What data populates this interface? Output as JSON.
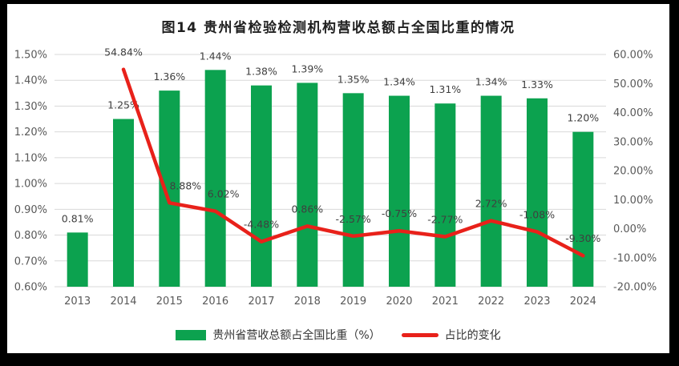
{
  "window": {
    "frame_background": "#000000",
    "panel_background": "#ffffff"
  },
  "title": "图14 贵州省检验检测机构营收总额占全国比重的情况",
  "legend": {
    "items": [
      {
        "label": "贵州省营收总额占全国比重（%）",
        "marker": "bar",
        "color": "#0CA24F"
      },
      {
        "label": "占比的变化",
        "marker": "line",
        "color": "#E8211A"
      }
    ]
  },
  "colors": {
    "bar_fill": "#0CA24F",
    "line_stroke": "#E8211A",
    "gridline": "#D9D9D9",
    "tick_text": "#595959",
    "data_label_text": "#3F3F3F"
  },
  "chart_data": {
    "type": "bar+line combo",
    "title": "图14 贵州省检验检测机构营收总额占全国比重的情况",
    "categories": [
      "2013",
      "2014",
      "2015",
      "2016",
      "2017",
      "2018",
      "2019",
      "2020",
      "2021",
      "2022",
      "2023",
      "2024"
    ],
    "series": [
      {
        "name": "贵州省营收总额占全国比重（%）",
        "type": "bar",
        "axis": "left",
        "color": "#0CA24F",
        "values": [
          0.81,
          1.25,
          1.36,
          1.44,
          1.38,
          1.39,
          1.35,
          1.34,
          1.31,
          1.34,
          1.33,
          1.2
        ],
        "data_labels": [
          "0.81%",
          "1.25%",
          "1.36%",
          "1.44%",
          "1.38%",
          "1.39%",
          "1.35%",
          "1.34%",
          "1.31%",
          "1.34%",
          "1.33%",
          "1.20%"
        ]
      },
      {
        "name": "占比的变化",
        "type": "line",
        "axis": "right",
        "color": "#E8211A",
        "values": [
          null,
          54.84,
          8.88,
          6.02,
          -4.48,
          0.86,
          -2.57,
          -0.75,
          -2.77,
          2.72,
          -1.08,
          -9.3
        ],
        "data_labels": [
          null,
          "54.84%",
          "8.88%",
          "6.02%",
          "-4.48%",
          "0.86%",
          "-2.57%",
          "-0.75%",
          "-2.77%",
          "2.72%",
          "-1.08%",
          "-9.30%"
        ]
      }
    ],
    "left_axis": {
      "min": 0.6,
      "max": 1.5,
      "step": 0.1,
      "tick_labels": [
        "0.60%",
        "0.70%",
        "0.80%",
        "0.90%",
        "1.00%",
        "1.10%",
        "1.20%",
        "1.30%",
        "1.40%",
        "1.50%"
      ]
    },
    "right_axis": {
      "min": -20,
      "max": 60,
      "step": 10,
      "tick_labels": [
        "-20.00%",
        "-10.00%",
        "0.00%",
        "10.00%",
        "20.00%",
        "30.00%",
        "40.00%",
        "50.00%",
        "60.00%"
      ]
    },
    "grid": true,
    "legend_position": "bottom"
  }
}
